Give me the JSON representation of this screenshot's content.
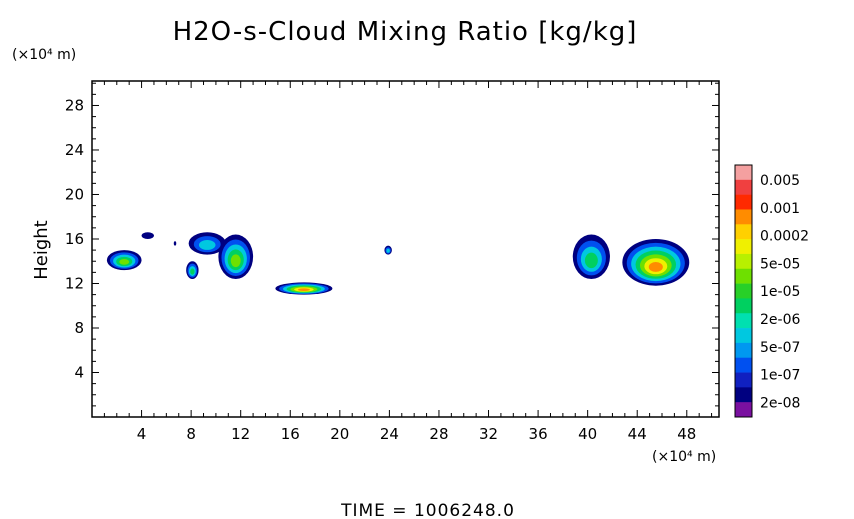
{
  "chart_data": {
    "type": "heatmap",
    "title": "H2O-s-Cloud Mixing Ratio [kg/kg]",
    "ylabel": "Height",
    "xunit": "(×10⁴ m)",
    "yunit": "(×10⁴ m)",
    "xlim": [
      0,
      50.6
    ],
    "ylim": [
      0,
      30.2
    ],
    "x_ticks": [
      "4",
      "8",
      "12",
      "16",
      "20",
      "24",
      "28",
      "32",
      "36",
      "40",
      "44",
      "48"
    ],
    "y_ticks": [
      "4",
      "8",
      "12",
      "16",
      "20",
      "24",
      "28"
    ],
    "colorbar": {
      "labels": [
        "0.005",
        "0.001",
        "0.0002",
        "5e-05",
        "1e-05",
        "2e-06",
        "5e-07",
        "1e-07",
        "2e-08"
      ],
      "colors": [
        "#f4a0a0",
        "#f04040",
        "#ff2a00",
        "#ff8c00",
        "#ffd000",
        "#f0f000",
        "#b8f000",
        "#6ee000",
        "#28d028",
        "#00d060",
        "#00e0b0",
        "#00c8e0",
        "#0098f0",
        "#0050f0",
        "#1020c0",
        "#000080",
        "#7a10a0"
      ]
    },
    "cloud_regions": [
      {
        "x": [
          1.2,
          4.0
        ],
        "y": [
          13.2,
          15.0
        ],
        "max_level": "5e-05"
      },
      {
        "x": [
          4.0,
          5.0
        ],
        "y": [
          16.0,
          16.6
        ],
        "max_level": "2e-08"
      },
      {
        "x": [
          6.6,
          6.8
        ],
        "y": [
          15.4,
          15.8
        ],
        "max_level": "2e-08"
      },
      {
        "x": [
          7.8,
          10.8
        ],
        "y": [
          14.6,
          16.6
        ],
        "max_level": "2e-06"
      },
      {
        "x": [
          7.6,
          8.6
        ],
        "y": [
          12.4,
          14.0
        ],
        "max_level": "1e-05"
      },
      {
        "x": [
          10.2,
          13.0
        ],
        "y": [
          12.4,
          16.4
        ],
        "max_level": "5e-05"
      },
      {
        "x": [
          14.8,
          19.4
        ],
        "y": [
          11.0,
          12.1
        ],
        "max_level": "0.0002"
      },
      {
        "x": [
          23.6,
          24.2
        ],
        "y": [
          14.6,
          15.4
        ],
        "max_level": "2e-06"
      },
      {
        "x": [
          38.8,
          41.8
        ],
        "y": [
          12.4,
          16.4
        ],
        "max_level": "1e-05"
      },
      {
        "x": [
          42.8,
          48.2
        ],
        "y": [
          11.8,
          16.0
        ],
        "max_level": "0.0002"
      }
    ]
  },
  "footer": {
    "time_label": "TIME  =  1006248.0"
  }
}
